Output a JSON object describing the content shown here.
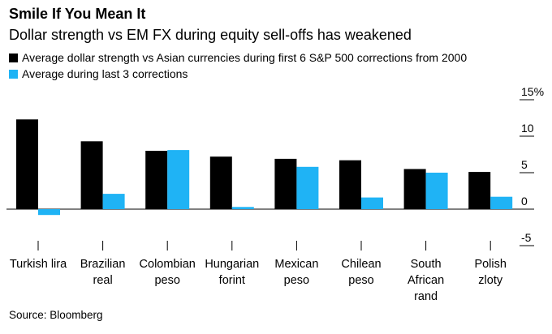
{
  "title": "Smile If You Mean It",
  "subtitle": "Dollar strength vs EM FX during equity sell-offs has weakened",
  "legend": [
    {
      "label": "Average dollar strength vs Asian currencies during first 6 S&P 500 corrections from 2000",
      "color": "#000000"
    },
    {
      "label": "Average during last 3 corrections",
      "color": "#1fb3f5"
    }
  ],
  "source": "Source: Bloomberg",
  "chart_data": {
    "type": "bar",
    "title": "Smile If You Mean It",
    "subtitle": "Dollar strength vs EM FX during equity sell-offs has weakened",
    "categories": [
      [
        "Turkish lira"
      ],
      [
        "Brazilian",
        "real"
      ],
      [
        "Colombian",
        "peso"
      ],
      [
        "Hungarian",
        "forint"
      ],
      [
        "Mexican",
        "peso"
      ],
      [
        "Chilean",
        "peso"
      ],
      [
        "South",
        "African",
        "rand"
      ],
      [
        "Polish",
        "zloty"
      ]
    ],
    "series": [
      {
        "name": "Average dollar strength vs Asian currencies during first 6 S&P 500 corrections from 2000",
        "color": "#000000",
        "values": [
          12.3,
          9.3,
          8.0,
          7.2,
          6.9,
          6.7,
          5.5,
          5.1
        ]
      },
      {
        "name": "Average during last 3 corrections",
        "color": "#1fb3f5",
        "values": [
          -0.8,
          2.1,
          8.1,
          0.3,
          5.8,
          1.6,
          5.0,
          1.7
        ]
      }
    ],
    "yticks": [
      -5,
      0,
      5,
      10,
      15
    ],
    "ytick_labels": [
      "-5",
      "0",
      "5",
      "10",
      "15%"
    ],
    "ylim": [
      -5,
      15
    ],
    "xlabel": "",
    "ylabel": ""
  }
}
